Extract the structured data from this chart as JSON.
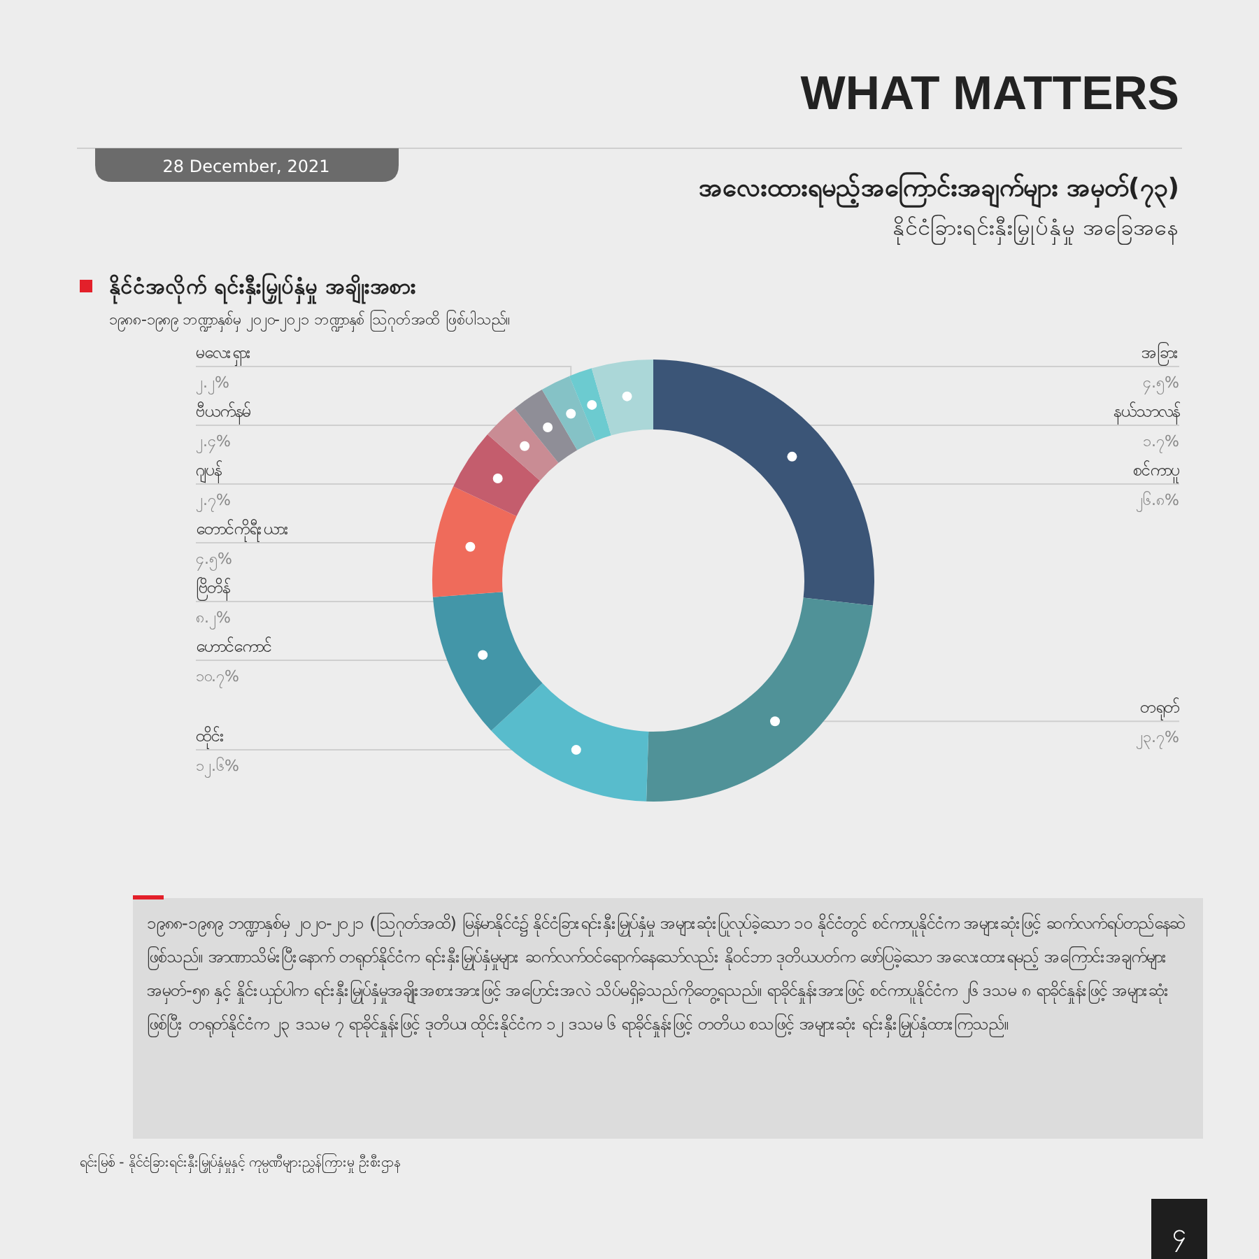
{
  "chart_data": {
    "type": "donut",
    "title": "အလေးထားရမည့်အကြောင်းအချက်များ အမှတ်(၇၃)",
    "subtitle": "နိုင်ငံခြားရင်းနှီးမြှုပ်နှံမှု အခြေအနေ",
    "categories": [
      "စင်ကာပူ",
      "တရုတ်",
      "ထိုင်း",
      "ဟောင်ကောင်",
      "ဗြိတိန်",
      "တောင်ကိုရီးယား",
      "ဂျပန်",
      "ဗီယက်နမ်",
      "မလေးရှား",
      "နယ်သာလန်",
      "အခြား"
    ],
    "values": [
      26.8,
      23.7,
      12.6,
      10.7,
      8.2,
      4.5,
      2.7,
      2.4,
      2.2,
      1.7,
      4.5
    ],
    "value_labels": [
      "၂၆.၈%",
      "၂၃.၇%",
      "၁၂.၆%",
      "၁၀.၇%",
      "၈.၂%",
      "၄.၅%",
      "၂.၇%",
      "၂.၄%",
      "၂.၂%",
      "၁.၇%",
      "၄.၅%"
    ],
    "colors": [
      "#3b5577",
      "#509298",
      "#58bccc",
      "#4396a8",
      "#ef6b5b",
      "#c45d6d",
      "#c98c94",
      "#8f8e97",
      "#85c2c6",
      "#6ccbd0",
      "#abd7d8"
    ],
    "annotations": [
      "WHAT MATTERS",
      "28 December, 2021",
      "နိုင်ငံအလိုက် ရင်းနှီးမြှုပ်နှံမှု အချိုးအစား",
      "၁၉၈၈-၁၉၈၉ ဘဏ္ဍာနှစ်မှ ၂၀၂၀-၂၀၂၁ ဘဏ္ဍာနှစ် ဩဂုတ်အထိ ဖြစ်ပါသည်။",
      "၁၉၈၈-၁၉၈၉ ဘဏ္ဍာနှစ်မှ ၂၀၂၀-၂၀၂၁ (ဩဂုတ်အထိ) မြန်မာနိုင်ငံ၌ နိုင်ငံခြားရင်းနှီးမြှုပ်နှံမှု အများဆုံးပြုလုပ်ခဲ့သော ၁၀ နိုင်ငံတွင် စင်ကာပူနိုင်ငံက အများဆုံးဖြင့် ဆက်လက်ရပ်တည်နေဆဲ ဖြစ်သည်။ အာဏာသိမ်းပြီးနောက် တရုတ်နိုင်ငံက ရင်းနှီးမြှုပ်နှံမှုများ ဆက်လက်ဝင်ရောက်နေသော်လည်း နိုဝင်ဘာ ဒုတိယပတ်က ဖော်ပြခဲ့သော အလေးထားရမည့် အကြောင်းအချက်များ အမှတ်-၅၈ နှင့် နှိုင်းယှဉ်ပါက ရင်းနှီးမြှုပ်နှံမှုအချိုးအစားအားဖြင့် အပြောင်းအလဲ သိပ်မရှိခဲ့သည်ကိုတွေ့ရသည်။ ရာခိုင်နှုန်းအားဖြင့် စင်ကာပူနိုင်ငံက ၂၆ ဒသမ ၈ ရာခိုင်နှုန်းဖြင့် အများဆုံးဖြစ်ပြီး တရုတ်နိုင်ငံက ၂၃ ဒသမ ၇ ရာခိုင်နှုန်းဖြင့် ဒုတိယ၊ ထိုင်းနိုင်ငံက ၁၂ ဒသမ ၆ ရာခိုင်နှုန်းဖြင့် တတိယ စသဖြင့် အများဆုံး ရင်းနှီးမြှုပ်နှံထားကြသည်။",
      "ရင်းမြစ် -   နိုင်ငံခြားရင်းနှီးမြှုပ်နှံမှုနှင့် ကုမ္ပဏီများညွှန်ကြားမှု ဦးစီးဌာန",
      "၄"
    ]
  }
}
